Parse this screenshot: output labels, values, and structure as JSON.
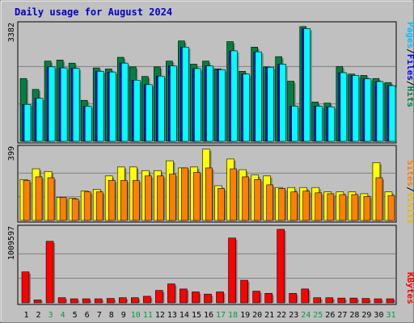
{
  "chart_data": [
    {
      "type": "bar",
      "title": "Daily usage for August 2024",
      "scale_max_label": "3382",
      "ymax": 3382,
      "categories": [
        "1",
        "2",
        "3",
        "4",
        "5",
        "6",
        "7",
        "8",
        "9",
        "10",
        "11",
        "12",
        "13",
        "14",
        "15",
        "16",
        "17",
        "18",
        "19",
        "20",
        "21",
        "22",
        "23",
        "24",
        "25",
        "26",
        "27",
        "28",
        "29",
        "30",
        "31"
      ],
      "weekend_days": [
        "3",
        "4",
        "10",
        "11",
        "17",
        "18",
        "24",
        "25",
        "31"
      ],
      "legend": [
        "Pages",
        "/",
        "Files",
        "/",
        "Hits"
      ],
      "series": [
        {
          "name": "Hits",
          "color": "#008040",
          "values": [
            1840,
            1520,
            2350,
            2380,
            2290,
            1200,
            2150,
            2120,
            2460,
            2180,
            1900,
            2180,
            2350,
            2940,
            2260,
            2350,
            2120,
            2920,
            2050,
            2760,
            2180,
            2480,
            1760,
            3360,
            1150,
            1120,
            2190,
            1970,
            1930,
            1840,
            1720
          ]
        },
        {
          "name": "Files",
          "color": "#0000ff",
          "values": [
            1080,
            1260,
            2180,
            2150,
            2140,
            1030,
            2050,
            2030,
            2290,
            1790,
            1660,
            1910,
            2210,
            2760,
            2130,
            2210,
            2100,
            2650,
            1970,
            2620,
            2170,
            2260,
            1030,
            3300,
            1030,
            1010,
            2010,
            1930,
            1830,
            1750,
            1630
          ]
        },
        {
          "name": "Pages",
          "color": "#00ffff",
          "values": [
            1080,
            1260,
            2180,
            2150,
            2140,
            1030,
            2050,
            2030,
            2290,
            1790,
            1660,
            1910,
            2210,
            2760,
            2130,
            2210,
            2100,
            2650,
            1970,
            2620,
            2170,
            2260,
            1030,
            3300,
            1030,
            1010,
            2010,
            1930,
            1830,
            1750,
            1630
          ]
        }
      ]
    },
    {
      "type": "bar",
      "scale_max_label": "399",
      "ymax": 399,
      "legend": [
        "Sites",
        "/",
        "Visits"
      ],
      "series": [
        {
          "name": "Visits",
          "color": "#ffff00",
          "values": [
            230,
            290,
            275,
            130,
            125,
            165,
            175,
            250,
            300,
            300,
            280,
            280,
            335,
            295,
            300,
            400,
            195,
            345,
            285,
            255,
            250,
            185,
            185,
            185,
            185,
            160,
            160,
            160,
            150,
            325,
            160
          ]
        },
        {
          "name": "Sites",
          "color": "#ff8000",
          "values": [
            225,
            245,
            240,
            130,
            120,
            160,
            160,
            225,
            225,
            225,
            250,
            250,
            260,
            295,
            270,
            295,
            180,
            290,
            245,
            230,
            200,
            180,
            160,
            165,
            155,
            150,
            145,
            145,
            135,
            240,
            140
          ]
        }
      ]
    },
    {
      "type": "bar",
      "scale_max_label": "1009597",
      "ymax": 1009597,
      "legend": [
        "KBytes"
      ],
      "series": [
        {
          "name": "KBytes",
          "color": "#ff0000",
          "values": [
            425000,
            40000,
            845000,
            70000,
            55000,
            55000,
            55000,
            60000,
            70000,
            70000,
            90000,
            170000,
            260000,
            190000,
            150000,
            120000,
            150000,
            890000,
            310000,
            160000,
            130000,
            1009597,
            130000,
            190000,
            70000,
            70000,
            65000,
            65000,
            60000,
            55000,
            55000
          ]
        }
      ]
    }
  ]
}
